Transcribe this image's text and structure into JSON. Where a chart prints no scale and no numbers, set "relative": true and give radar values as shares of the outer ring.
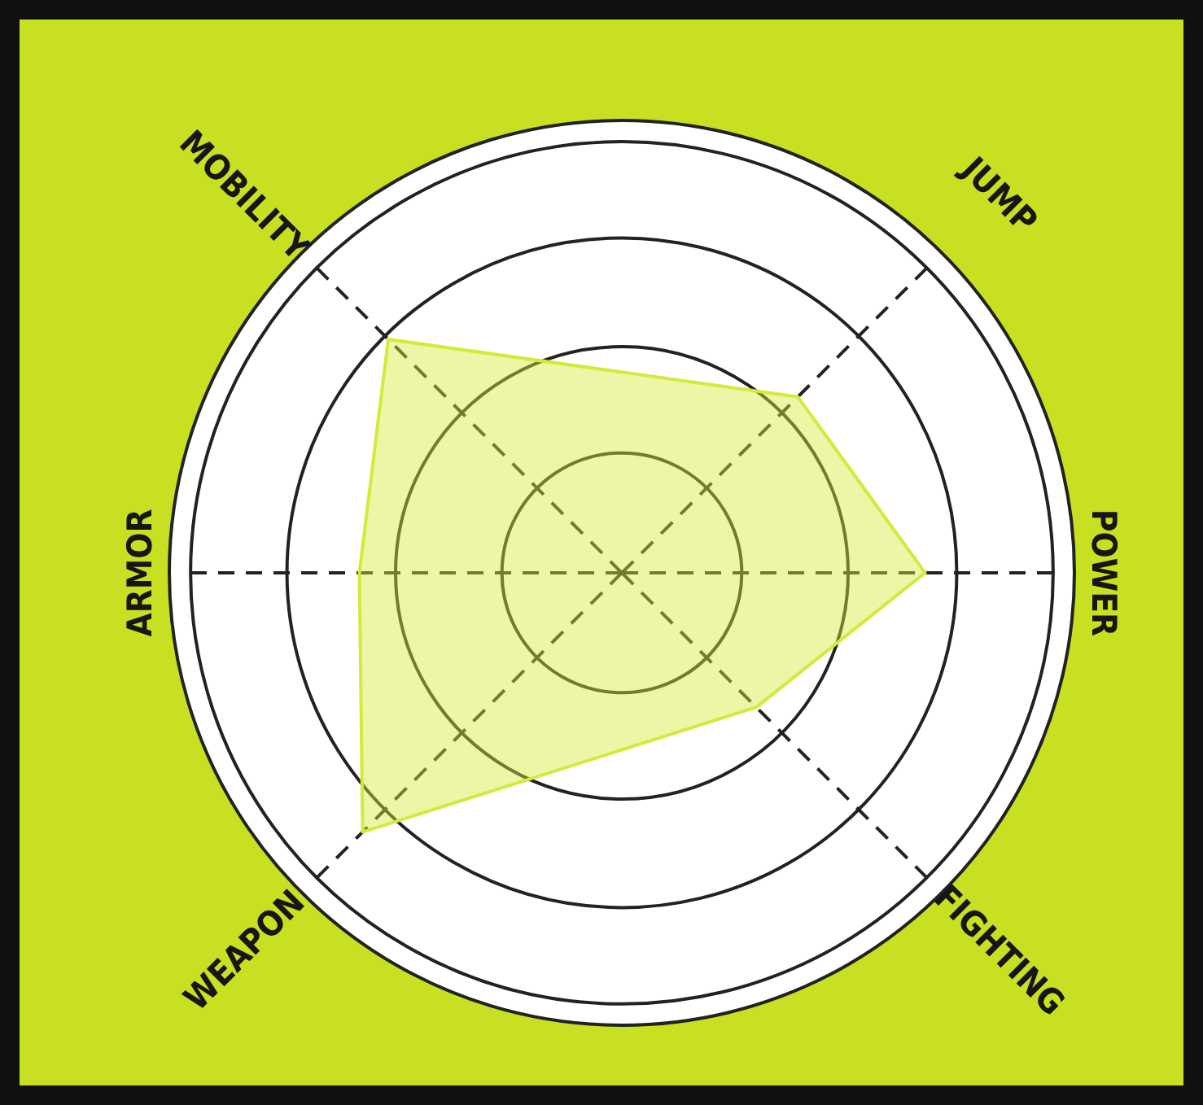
{
  "chart_data": {
    "type": "radar",
    "relative": true,
    "categories": [
      "MOBILITY",
      "JUMP",
      "POWER",
      "FIGHTING",
      "WEAPON",
      "ARMOR"
    ],
    "series": [
      {
        "color": "#d4ea3a",
        "values": [
          0.73,
          0.55,
          0.67,
          0.42,
          0.81,
          0.58
        ]
      }
    ]
  }
}
